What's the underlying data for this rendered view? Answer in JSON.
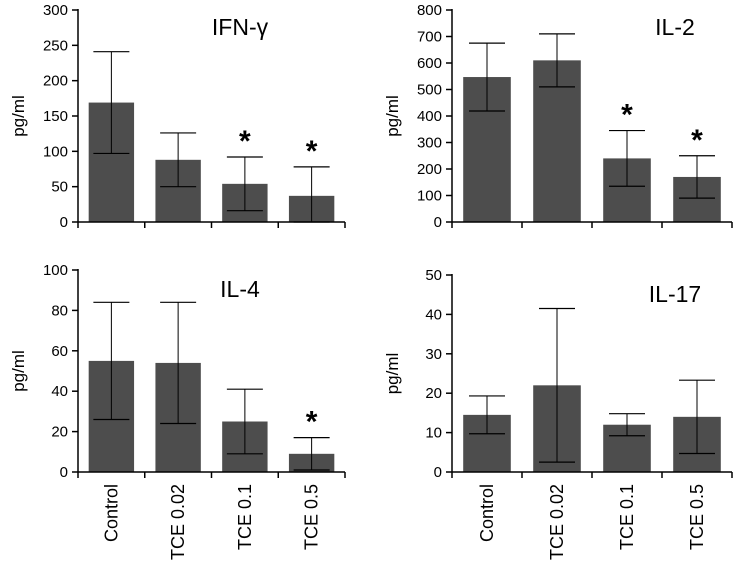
{
  "chart_data": [
    {
      "type": "bar",
      "title": "IFN-γ",
      "ylabel": "pg/ml",
      "ylim": [
        0,
        300
      ],
      "yticks": [
        0,
        50,
        100,
        150,
        200,
        250,
        300
      ],
      "categories": [
        "Control",
        "TCE 0.02",
        "TCE 0.1",
        "TCE 0.5"
      ],
      "values": [
        169,
        88,
        54,
        37
      ],
      "error": [
        72,
        38,
        38,
        41
      ],
      "significance": [
        "",
        "",
        "*",
        "*"
      ]
    },
    {
      "type": "bar",
      "title": "IL-2",
      "ylabel": "pg/ml",
      "ylim": [
        0,
        800
      ],
      "yticks": [
        0,
        100,
        200,
        300,
        400,
        500,
        600,
        700,
        800
      ],
      "categories": [
        "Control",
        "TCE 0.02",
        "TCE 0.1",
        "TCE 0.5"
      ],
      "values": [
        547,
        610,
        240,
        170
      ],
      "error": [
        128,
        100,
        105,
        80
      ],
      "significance": [
        "",
        "",
        "*",
        "*"
      ]
    },
    {
      "type": "bar",
      "title": "IL-4",
      "ylabel": "pg/ml",
      "ylim": [
        0,
        100
      ],
      "yticks": [
        0,
        20,
        40,
        60,
        80,
        100
      ],
      "categories": [
        "Control",
        "TCE 0.02",
        "TCE 0.1",
        "TCE 0.5"
      ],
      "values": [
        55,
        54,
        25,
        9
      ],
      "error": [
        29,
        30,
        16,
        8
      ],
      "significance": [
        "",
        "",
        "",
        "*"
      ]
    },
    {
      "type": "bar",
      "title": "IL-17",
      "ylabel": "pg/ml",
      "ylim": [
        0,
        50
      ],
      "yticks": [
        0,
        10,
        20,
        30,
        40,
        50
      ],
      "categories": [
        "Control",
        "TCE 0.02",
        "TCE 0.1",
        "TCE 0.5"
      ],
      "values": [
        14.5,
        22,
        12,
        14
      ],
      "error": [
        4.8,
        19.5,
        2.8,
        9.3
      ],
      "significance": [
        "",
        "",
        "",
        ""
      ]
    }
  ],
  "colors": {
    "bar": "#4d4d4d",
    "axis": "#000000",
    "error_bar": "#000000"
  }
}
